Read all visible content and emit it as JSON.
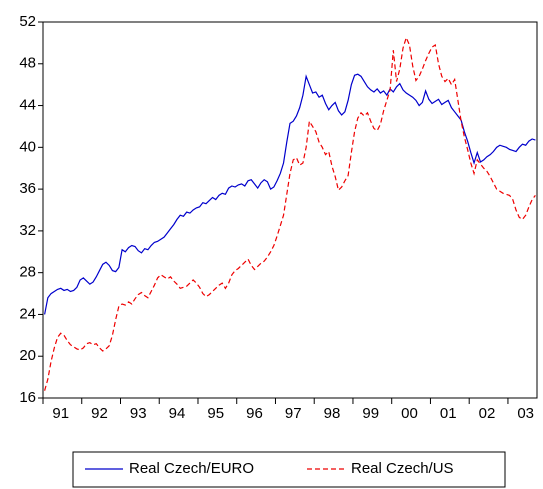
{
  "chart_data": {
    "type": "line",
    "categories": [
      null,
      null,
      null,
      null,
      null,
      null,
      "91",
      null,
      null,
      null,
      null,
      null,
      null,
      null,
      null,
      null,
      null,
      null,
      "92",
      null,
      null,
      null,
      null,
      null,
      null,
      null,
      null,
      null,
      null,
      null,
      "93",
      null,
      null,
      null,
      null,
      null,
      null,
      null,
      null,
      null,
      null,
      null,
      "94",
      null,
      null,
      null,
      null,
      null,
      null,
      null,
      null,
      null,
      null,
      null,
      "95",
      null,
      null,
      null,
      null,
      null,
      null,
      null,
      null,
      null,
      null,
      null,
      "96",
      null,
      null,
      null,
      null,
      null,
      null,
      null,
      null,
      null,
      null,
      null,
      "97",
      null,
      null,
      null,
      null,
      null,
      null,
      null,
      null,
      null,
      null,
      null,
      "98",
      null,
      null,
      null,
      null,
      null,
      null,
      null,
      null,
      null,
      null,
      null,
      "99",
      null,
      null,
      null,
      null,
      null,
      null,
      null,
      null,
      null,
      null,
      null,
      "00",
      null,
      null,
      null,
      null,
      null,
      null,
      null,
      null,
      null,
      null,
      null,
      "01",
      null,
      null,
      null,
      null,
      null,
      null,
      null,
      null,
      null,
      null,
      null,
      "02",
      null,
      null,
      null,
      null,
      null,
      null,
      null,
      null,
      null,
      null,
      null,
      "03",
      null,
      null
    ],
    "ylim": [
      16,
      52
    ],
    "yticks": [
      16,
      20,
      24,
      28,
      32,
      36,
      40,
      44,
      48,
      52
    ],
    "legend": "bottom",
    "series": [
      {
        "name": "Real Czech/EURO",
        "color": "#0000cc",
        "linestyle": "solid",
        "values": [
          24.0,
          25.6,
          26.0,
          26.2,
          26.4,
          26.5,
          26.3,
          26.4,
          26.2,
          26.3,
          26.6,
          27.3,
          27.5,
          27.2,
          26.9,
          27.1,
          27.6,
          28.2,
          28.8,
          29.0,
          28.7,
          28.2,
          28.1,
          28.5,
          30.2,
          30.0,
          30.4,
          30.6,
          30.5,
          30.1,
          29.9,
          30.3,
          30.2,
          30.6,
          30.9,
          31.0,
          31.2,
          31.4,
          31.8,
          32.2,
          32.6,
          33.1,
          33.5,
          33.4,
          33.8,
          33.7,
          34.0,
          34.2,
          34.3,
          34.7,
          34.6,
          34.9,
          35.2,
          35.0,
          35.4,
          35.6,
          35.5,
          36.1,
          36.3,
          36.2,
          36.4,
          36.5,
          36.3,
          36.8,
          36.9,
          36.5,
          36.1,
          36.6,
          36.9,
          36.7,
          36.0,
          36.2,
          36.8,
          37.5,
          38.5,
          40.5,
          42.3,
          42.5,
          43.0,
          43.8,
          45.0,
          46.8,
          46.0,
          45.2,
          45.3,
          44.8,
          45.0,
          44.2,
          43.6,
          44.0,
          44.3,
          43.5,
          43.1,
          43.4,
          44.5,
          46.0,
          46.9,
          47.0,
          46.8,
          46.3,
          45.8,
          45.5,
          45.3,
          45.6,
          45.2,
          45.4,
          45.0,
          45.6,
          45.3,
          45.8,
          46.1,
          45.5,
          45.2,
          45.0,
          44.8,
          44.5,
          44.0,
          44.3,
          45.4,
          44.6,
          44.2,
          44.4,
          44.6,
          44.1,
          44.3,
          44.5,
          43.8,
          43.4,
          43.0,
          42.6,
          41.5,
          40.6,
          39.5,
          38.5,
          39.5,
          38.6,
          38.8,
          39.1,
          39.3,
          39.6,
          40.0,
          40.2,
          40.1,
          40.0,
          39.8,
          39.7,
          39.6,
          40.0,
          40.3,
          40.2,
          40.6,
          40.8,
          40.7
        ]
      },
      {
        "name": "Real Czech/US",
        "color": "#ee0000",
        "linestyle": "dashed",
        "values": [
          16.7,
          17.8,
          19.5,
          20.8,
          21.8,
          22.2,
          22.0,
          21.5,
          21.1,
          20.9,
          20.7,
          20.6,
          20.8,
          21.2,
          21.3,
          21.1,
          21.2,
          20.8,
          20.5,
          20.7,
          21.0,
          22.0,
          23.5,
          24.8,
          25.0,
          24.9,
          25.2,
          25.0,
          25.5,
          25.9,
          26.1,
          25.8,
          25.6,
          26.2,
          26.8,
          27.5,
          27.8,
          27.6,
          27.4,
          27.6,
          27.2,
          26.9,
          26.5,
          26.6,
          26.7,
          27.0,
          27.3,
          27.0,
          26.6,
          26.0,
          25.7,
          25.9,
          26.2,
          26.5,
          26.8,
          27.0,
          26.5,
          27.0,
          27.8,
          28.2,
          28.4,
          28.7,
          29.0,
          29.3,
          28.7,
          28.3,
          28.6,
          28.9,
          29.1,
          29.5,
          30.0,
          30.6,
          31.5,
          32.5,
          33.5,
          35.5,
          37.5,
          38.8,
          39.0,
          38.3,
          38.5,
          40.0,
          42.5,
          42.0,
          41.5,
          40.5,
          40.0,
          39.3,
          39.6,
          38.2,
          37.2,
          35.9,
          36.2,
          36.8,
          37.3,
          39.5,
          41.5,
          42.8,
          43.3,
          43.0,
          43.3,
          42.5,
          41.8,
          41.6,
          42.2,
          43.5,
          44.5,
          45.5,
          49.3,
          46.3,
          47.5,
          49.5,
          50.5,
          49.8,
          47.8,
          46.4,
          46.8,
          47.5,
          48.3,
          49.0,
          49.6,
          49.8,
          48.0,
          46.8,
          46.3,
          46.6,
          46.0,
          46.5,
          44.5,
          42.5,
          41.0,
          39.8,
          38.5,
          37.5,
          38.8,
          38.4,
          38.0,
          37.7,
          37.2,
          36.6,
          36.0,
          35.8,
          35.6,
          35.5,
          35.4,
          35.0,
          34.0,
          33.3,
          33.1,
          33.5,
          34.3,
          35.0,
          35.4
        ]
      }
    ]
  }
}
